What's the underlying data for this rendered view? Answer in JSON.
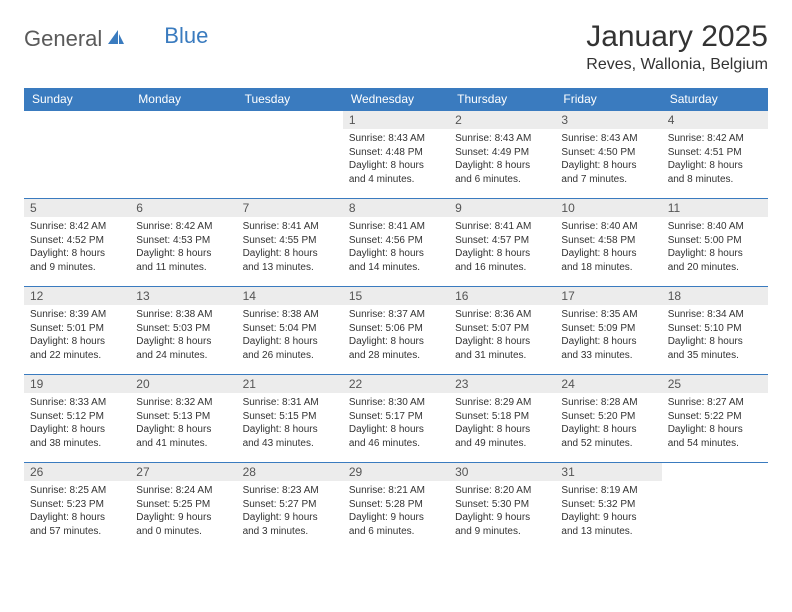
{
  "logo": {
    "text1": "General",
    "text2": "Blue"
  },
  "title": "January 2025",
  "location": "Reves, Wallonia, Belgium",
  "colors": {
    "header_bg": "#3a7bbf",
    "header_text": "#ffffff",
    "daynum_bg": "#ececec",
    "border": "#3a7bbf",
    "body_text": "#333333",
    "logo_gray": "#5a5a5a",
    "logo_blue": "#3a7bbf"
  },
  "typography": {
    "title_fontsize": 30,
    "location_fontsize": 16,
    "header_fontsize": 12,
    "daynum_fontsize": 12,
    "info_fontsize": 10
  },
  "day_headers": [
    "Sunday",
    "Monday",
    "Tuesday",
    "Wednesday",
    "Thursday",
    "Friday",
    "Saturday"
  ],
  "weeks": [
    [
      null,
      null,
      null,
      {
        "num": "1",
        "sunrise": "8:43 AM",
        "sunset": "4:48 PM",
        "daylight": "8 hours and 4 minutes."
      },
      {
        "num": "2",
        "sunrise": "8:43 AM",
        "sunset": "4:49 PM",
        "daylight": "8 hours and 6 minutes."
      },
      {
        "num": "3",
        "sunrise": "8:43 AM",
        "sunset": "4:50 PM",
        "daylight": "8 hours and 7 minutes."
      },
      {
        "num": "4",
        "sunrise": "8:42 AM",
        "sunset": "4:51 PM",
        "daylight": "8 hours and 8 minutes."
      }
    ],
    [
      {
        "num": "5",
        "sunrise": "8:42 AM",
        "sunset": "4:52 PM",
        "daylight": "8 hours and 9 minutes."
      },
      {
        "num": "6",
        "sunrise": "8:42 AM",
        "sunset": "4:53 PM",
        "daylight": "8 hours and 11 minutes."
      },
      {
        "num": "7",
        "sunrise": "8:41 AM",
        "sunset": "4:55 PM",
        "daylight": "8 hours and 13 minutes."
      },
      {
        "num": "8",
        "sunrise": "8:41 AM",
        "sunset": "4:56 PM",
        "daylight": "8 hours and 14 minutes."
      },
      {
        "num": "9",
        "sunrise": "8:41 AM",
        "sunset": "4:57 PM",
        "daylight": "8 hours and 16 minutes."
      },
      {
        "num": "10",
        "sunrise": "8:40 AM",
        "sunset": "4:58 PM",
        "daylight": "8 hours and 18 minutes."
      },
      {
        "num": "11",
        "sunrise": "8:40 AM",
        "sunset": "5:00 PM",
        "daylight": "8 hours and 20 minutes."
      }
    ],
    [
      {
        "num": "12",
        "sunrise": "8:39 AM",
        "sunset": "5:01 PM",
        "daylight": "8 hours and 22 minutes."
      },
      {
        "num": "13",
        "sunrise": "8:38 AM",
        "sunset": "5:03 PM",
        "daylight": "8 hours and 24 minutes."
      },
      {
        "num": "14",
        "sunrise": "8:38 AM",
        "sunset": "5:04 PM",
        "daylight": "8 hours and 26 minutes."
      },
      {
        "num": "15",
        "sunrise": "8:37 AM",
        "sunset": "5:06 PM",
        "daylight": "8 hours and 28 minutes."
      },
      {
        "num": "16",
        "sunrise": "8:36 AM",
        "sunset": "5:07 PM",
        "daylight": "8 hours and 31 minutes."
      },
      {
        "num": "17",
        "sunrise": "8:35 AM",
        "sunset": "5:09 PM",
        "daylight": "8 hours and 33 minutes."
      },
      {
        "num": "18",
        "sunrise": "8:34 AM",
        "sunset": "5:10 PM",
        "daylight": "8 hours and 35 minutes."
      }
    ],
    [
      {
        "num": "19",
        "sunrise": "8:33 AM",
        "sunset": "5:12 PM",
        "daylight": "8 hours and 38 minutes."
      },
      {
        "num": "20",
        "sunrise": "8:32 AM",
        "sunset": "5:13 PM",
        "daylight": "8 hours and 41 minutes."
      },
      {
        "num": "21",
        "sunrise": "8:31 AM",
        "sunset": "5:15 PM",
        "daylight": "8 hours and 43 minutes."
      },
      {
        "num": "22",
        "sunrise": "8:30 AM",
        "sunset": "5:17 PM",
        "daylight": "8 hours and 46 minutes."
      },
      {
        "num": "23",
        "sunrise": "8:29 AM",
        "sunset": "5:18 PM",
        "daylight": "8 hours and 49 minutes."
      },
      {
        "num": "24",
        "sunrise": "8:28 AM",
        "sunset": "5:20 PM",
        "daylight": "8 hours and 52 minutes."
      },
      {
        "num": "25",
        "sunrise": "8:27 AM",
        "sunset": "5:22 PM",
        "daylight": "8 hours and 54 minutes."
      }
    ],
    [
      {
        "num": "26",
        "sunrise": "8:25 AM",
        "sunset": "5:23 PM",
        "daylight": "8 hours and 57 minutes."
      },
      {
        "num": "27",
        "sunrise": "8:24 AM",
        "sunset": "5:25 PM",
        "daylight": "9 hours and 0 minutes."
      },
      {
        "num": "28",
        "sunrise": "8:23 AM",
        "sunset": "5:27 PM",
        "daylight": "9 hours and 3 minutes."
      },
      {
        "num": "29",
        "sunrise": "8:21 AM",
        "sunset": "5:28 PM",
        "daylight": "9 hours and 6 minutes."
      },
      {
        "num": "30",
        "sunrise": "8:20 AM",
        "sunset": "5:30 PM",
        "daylight": "9 hours and 9 minutes."
      },
      {
        "num": "31",
        "sunrise": "8:19 AM",
        "sunset": "5:32 PM",
        "daylight": "9 hours and 13 minutes."
      },
      null
    ]
  ],
  "labels": {
    "sunrise": "Sunrise: ",
    "sunset": "Sunset: ",
    "daylight": "Daylight: "
  }
}
